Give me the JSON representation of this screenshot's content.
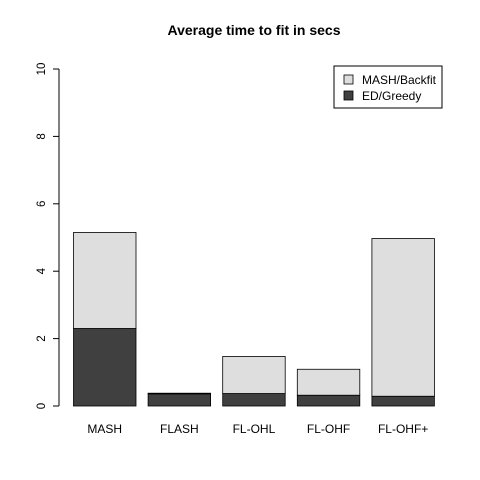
{
  "chart_data": {
    "type": "bar",
    "stacked": true,
    "title": "Average time to fit in secs",
    "xlabel": "",
    "ylabel": "",
    "categories": [
      "MASH",
      "FLASH",
      "FL-OHL",
      "FL-OHF",
      "FL-OHF+"
    ],
    "series": [
      {
        "name": "ED/Greedy",
        "color": "#404040",
        "values": [
          2.3,
          0.36,
          0.37,
          0.32,
          0.29
        ]
      },
      {
        "name": "MASH/Backfit",
        "color": "#dedede",
        "values": [
          2.85,
          0.02,
          1.1,
          0.77,
          4.68
        ]
      }
    ],
    "ylim": [
      0,
      10
    ],
    "yticks": [
      "0",
      "2",
      "4",
      "6",
      "8",
      "10"
    ],
    "legend": {
      "position": "top-right",
      "entries": [
        {
          "label": "MASH/Backfit",
          "color": "#dedede"
        },
        {
          "label": "ED/Greedy",
          "color": "#404040"
        }
      ]
    },
    "grid": false
  }
}
